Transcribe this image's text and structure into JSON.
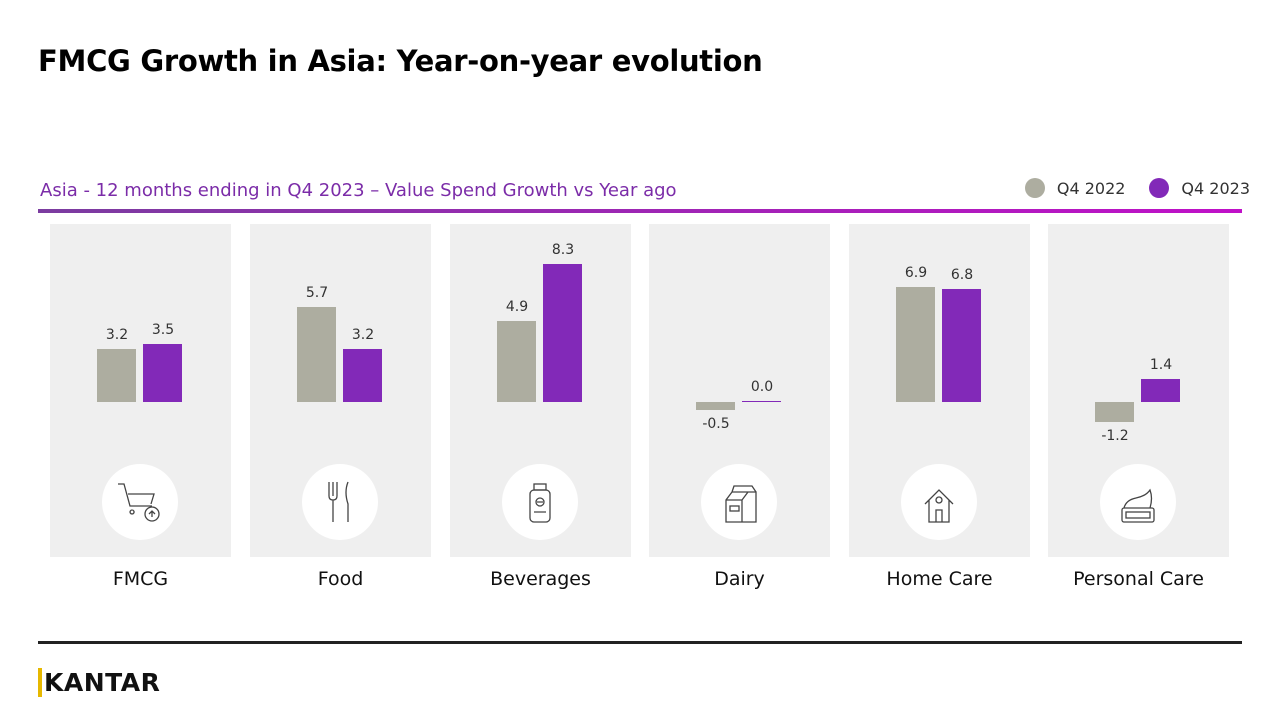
{
  "title": "FMCG Growth in Asia: Year-on-year evolution",
  "logo": "KANTAR",
  "chart_data": {
    "type": "bar",
    "title": "Asia - 12 months ending in Q4 2023 – Value Spend Growth vs Year ago",
    "categories": [
      "FMCG",
      "Food",
      "Beverages",
      "Dairy",
      "Home Care",
      "Personal Care"
    ],
    "icons": [
      "shopping-cart-icon",
      "fork-knife-icon",
      "bottle-icon",
      "milk-carton-icon",
      "house-icon",
      "cream-jar-icon"
    ],
    "series": [
      {
        "name": "Q4 2022",
        "color": "#adada0",
        "values": [
          3.2,
          5.7,
          4.9,
          -0.5,
          6.9,
          -1.2
        ],
        "labels": [
          "3.2",
          "5.7",
          "4.9",
          "-0.5",
          "6.9",
          "-1.2"
        ]
      },
      {
        "name": "Q4 2023",
        "color": "#8229b8",
        "values": [
          3.5,
          3.2,
          8.3,
          0.0,
          6.8,
          1.4
        ],
        "labels": [
          "3.5",
          "3.2",
          "8.3",
          "0.0",
          "6.8",
          "1.4"
        ]
      }
    ],
    "legend": "top-right",
    "grid": false
  }
}
